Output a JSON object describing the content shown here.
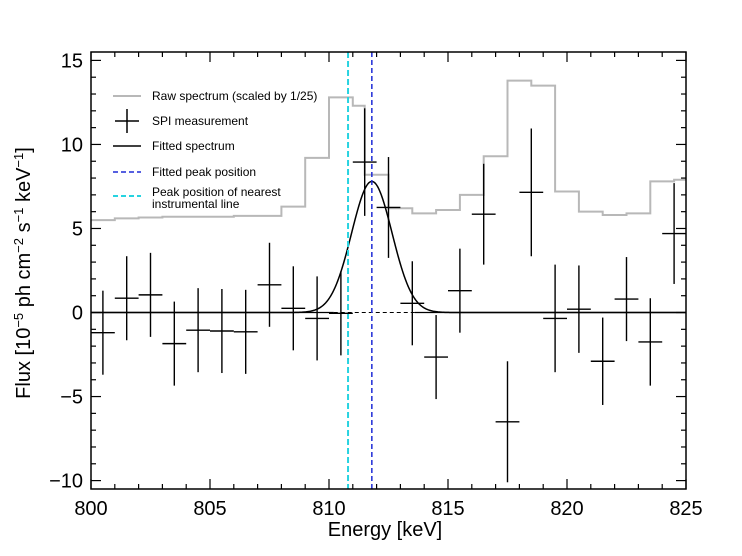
{
  "chart_data": {
    "type": "line",
    "xlabel": "Energy [keV]",
    "ylabel_parts": [
      "Flux [10",
      "−5",
      " ph cm",
      "−2",
      " s",
      "−1",
      " keV",
      "−1",
      "]"
    ],
    "xlim": [
      800,
      825
    ],
    "ylim": [
      -10.5,
      15.5
    ],
    "xticks": [
      800,
      805,
      810,
      815,
      820,
      825
    ],
    "yticks": [
      -10,
      -5,
      0,
      5,
      10,
      15
    ],
    "xtick_labels": [
      "800",
      "805",
      "810",
      "815",
      "820",
      "825"
    ],
    "ytick_labels": [
      "−10",
      "−5",
      "0",
      "5",
      "10",
      "15"
    ],
    "colors": {
      "raw": "#b8b8b8",
      "spi": "#000000",
      "fit": "#000000",
      "fitted_peak": "#1f2bd6",
      "instrumental_peak": "#27d3e0"
    },
    "raw_spectrum": {
      "name": "Raw spectrum (scaled by 1/25)",
      "bins": [
        [
          800.0,
          801.0,
          5.5
        ],
        [
          801.0,
          802.0,
          5.6
        ],
        [
          802.0,
          803.0,
          5.65
        ],
        [
          803.0,
          804.0,
          5.7
        ],
        [
          804.0,
          805.0,
          5.7
        ],
        [
          805.0,
          806.0,
          5.7
        ],
        [
          806.0,
          807.0,
          5.75
        ],
        [
          807.0,
          808.0,
          5.75
        ],
        [
          808.0,
          809.0,
          6.3
        ],
        [
          809.0,
          810.0,
          9.2
        ],
        [
          810.0,
          811.0,
          12.8
        ],
        [
          811.0,
          811.5,
          12.3
        ],
        [
          811.5,
          812.5,
          8.2
        ],
        [
          812.5,
          813.5,
          6.2
        ],
        [
          813.5,
          814.5,
          5.9
        ],
        [
          814.5,
          815.5,
          6.1
        ],
        [
          815.5,
          816.5,
          7.0
        ],
        [
          816.5,
          817.5,
          9.3
        ],
        [
          817.5,
          818.5,
          13.8
        ],
        [
          818.5,
          819.5,
          13.5
        ],
        [
          819.5,
          820.5,
          7.2
        ],
        [
          820.5,
          821.5,
          6.0
        ],
        [
          821.5,
          822.5,
          5.8
        ],
        [
          822.5,
          823.5,
          5.9
        ],
        [
          823.5,
          824.5,
          7.8
        ],
        [
          824.5,
          825.0,
          7.9
        ]
      ]
    },
    "spi_measurement": {
      "name": "SPI measurement",
      "points": [
        {
          "x": 800.5,
          "y": -1.2,
          "xerr": 0.5,
          "yerr": 2.5
        },
        {
          "x": 801.5,
          "y": 0.85,
          "xerr": 0.5,
          "yerr": 2.5
        },
        {
          "x": 802.5,
          "y": 1.05,
          "xerr": 0.5,
          "yerr": 2.5
        },
        {
          "x": 803.5,
          "y": -1.85,
          "xerr": 0.5,
          "yerr": 2.5
        },
        {
          "x": 804.5,
          "y": -1.05,
          "xerr": 0.5,
          "yerr": 2.5
        },
        {
          "x": 805.5,
          "y": -1.1,
          "xerr": 0.5,
          "yerr": 2.5
        },
        {
          "x": 806.5,
          "y": -1.15,
          "xerr": 0.5,
          "yerr": 2.5
        },
        {
          "x": 807.5,
          "y": 1.65,
          "xerr": 0.5,
          "yerr": 2.5
        },
        {
          "x": 808.5,
          "y": 0.25,
          "xerr": 0.5,
          "yerr": 2.5
        },
        {
          "x": 809.5,
          "y": -0.35,
          "xerr": 0.5,
          "yerr": 2.5
        },
        {
          "x": 810.5,
          "y": -0.05,
          "xerr": 0.5,
          "yerr": 2.5
        },
        {
          "x": 811.5,
          "y": 8.95,
          "xerr": 0.5,
          "yerr": 3.2
        },
        {
          "x": 812.5,
          "y": 6.25,
          "xerr": 0.5,
          "yerr": 3.0
        },
        {
          "x": 813.5,
          "y": 0.55,
          "xerr": 0.5,
          "yerr": 2.5
        },
        {
          "x": 814.5,
          "y": -2.65,
          "xerr": 0.5,
          "yerr": 2.5
        },
        {
          "x": 815.5,
          "y": 1.3,
          "xerr": 0.5,
          "yerr": 2.5
        },
        {
          "x": 816.5,
          "y": 5.85,
          "xerr": 0.5,
          "yerr": 3.0
        },
        {
          "x": 817.5,
          "y": -6.5,
          "xerr": 0.5,
          "yerr": 3.6
        },
        {
          "x": 818.5,
          "y": 7.15,
          "xerr": 0.5,
          "yerr": 3.8
        },
        {
          "x": 819.5,
          "y": -0.35,
          "xerr": 0.5,
          "yerr": 3.2
        },
        {
          "x": 820.5,
          "y": 0.2,
          "xerr": 0.5,
          "yerr": 2.6
        },
        {
          "x": 821.5,
          "y": -2.9,
          "xerr": 0.5,
          "yerr": 2.6
        },
        {
          "x": 822.5,
          "y": 0.8,
          "xerr": 0.5,
          "yerr": 2.5
        },
        {
          "x": 823.5,
          "y": -1.75,
          "xerr": 0.5,
          "yerr": 2.6
        },
        {
          "x": 824.5,
          "y": 4.7,
          "xerr": 0.5,
          "yerr": 3.0
        }
      ]
    },
    "fitted_spectrum": {
      "name": "Fitted spectrum",
      "model": "gaussian",
      "center": 811.8,
      "amplitude": 7.8,
      "sigma": 0.85
    },
    "fitted_peak_position": {
      "name": "Fitted peak position",
      "x": 811.8
    },
    "instrumental_line": {
      "name": "Peak position of nearest instrumental line",
      "x": 810.8
    },
    "zero_line": {
      "y": 0
    }
  },
  "legend": {
    "raw": "Raw spectrum (scaled by 1/25)",
    "spi": "SPI measurement",
    "fit": "Fitted spectrum",
    "peak": "Fitted peak position",
    "instrumental_line1": "Peak position of nearest",
    "instrumental_line2": "instrumental line"
  }
}
